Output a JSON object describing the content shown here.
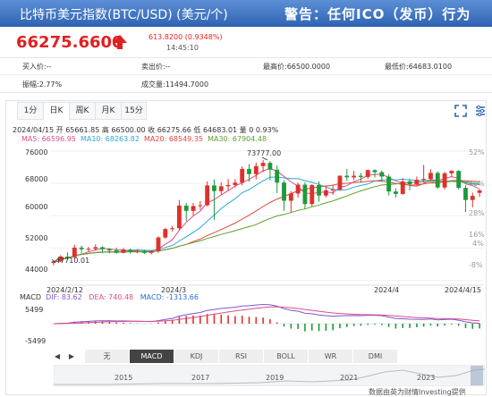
{
  "header": {
    "title": "比特币美元指数(BTC/USD) (美元/个)",
    "warning": "警告：任何ICO（发币）行为"
  },
  "quote": {
    "price": "66275.6600",
    "change": "613.8200 (0.9348%)",
    "time": "14:45:10",
    "up_color": "#e02020"
  },
  "stats": {
    "bid": "买入价:--",
    "ask": "卖出价:--",
    "high": "最高价:66500.0000",
    "low": "最低价:64683.0100",
    "amplitude": "振幅:2.77%",
    "volume": "成交量:11494.7000"
  },
  "tabs": [
    {
      "label": "1分"
    },
    {
      "label": "日K"
    },
    {
      "label": "周K"
    },
    {
      "label": "月K"
    },
    {
      "label": "15分"
    }
  ],
  "legend": {
    "ohlc": "2024/04/15  开 65661.85  高 66500.00  收 66275.66  低 64683.01  量 0  0.93%",
    "ma5": "MA5: 66596.95",
    "ma10": "MA10: 68263.82",
    "ma20": "MA20: 68549.35",
    "ma30": "MA30: 67904.48"
  },
  "macd": {
    "macd": "MACD",
    "dif": "DIF: 83.62",
    "dea": "DEA: 740.48",
    "val": "MACD: -1313.66",
    "top": "5499",
    "bottom": "-5499"
  },
  "indicators": [
    "无",
    "MACD",
    "KDJ",
    "RSI",
    "BOLL",
    "WR",
    "DMI"
  ],
  "years": [
    "2015",
    "2017",
    "2019",
    "2021",
    "2023"
  ],
  "source": "数据由英为财情Investing提供",
  "chart_data": {
    "type": "candlestick",
    "title": "",
    "ylabel": "",
    "ylim": [
      43000,
      78000
    ],
    "y_ticks_left": [
      76000,
      68000,
      60000,
      52000,
      44000
    ],
    "y_ticks_right": [
      "52%",
      "40%",
      "28%",
      "16%",
      "4%",
      "-8%"
    ],
    "x_labels": [
      "2024/2/12",
      "2024/3",
      "2024/4",
      "2024/4/15"
    ],
    "annotations": {
      "high": "73777.00",
      "low": "47710.01"
    },
    "candles": [
      [
        48300,
        48900,
        47710,
        48700
      ],
      [
        48700,
        50200,
        48500,
        49900
      ],
      [
        49900,
        50900,
        49200,
        49700
      ],
      [
        49700,
        52800,
        49300,
        52100
      ],
      [
        52100,
        52600,
        50600,
        51700
      ],
      [
        51700,
        52300,
        51000,
        51800
      ],
      [
        51800,
        52900,
        51300,
        52200
      ],
      [
        52200,
        52400,
        50700,
        51700
      ],
      [
        51700,
        52000,
        50700,
        51400
      ],
      [
        51400,
        52100,
        50600,
        50800
      ],
      [
        50800,
        52000,
        50700,
        51600
      ],
      [
        51600,
        51900,
        50600,
        51100
      ],
      [
        51100,
        51700,
        50700,
        51300
      ],
      [
        51300,
        51600,
        50500,
        50800
      ],
      [
        50800,
        51400,
        50400,
        51200
      ],
      [
        51200,
        54900,
        50800,
        54600
      ],
      [
        54600,
        57000,
        54300,
        56700
      ],
      [
        56700,
        57400,
        56100,
        56900
      ],
      [
        56900,
        63900,
        56500,
        62500
      ],
      [
        62500,
        63200,
        58700,
        61200
      ],
      [
        61200,
        63200,
        60100,
        62400
      ],
      [
        62400,
        63600,
        61500,
        62600
      ],
      [
        62600,
        68500,
        62300,
        67500
      ],
      [
        67500,
        69000,
        59000,
        66100
      ],
      [
        66100,
        68300,
        65200,
        67300
      ],
      [
        67300,
        69100,
        66200,
        67600
      ],
      [
        67600,
        69100,
        67000,
        68200
      ],
      [
        68200,
        72200,
        67500,
        71600
      ],
      [
        71600,
        72800,
        68400,
        70300
      ],
      [
        70300,
        73200,
        69000,
        72300
      ],
      [
        72300,
        73777,
        70800,
        73100
      ],
      [
        73100,
        73500,
        68800,
        71400
      ],
      [
        71400,
        72400,
        65600,
        68200
      ],
      [
        68200,
        68800,
        61200,
        63700
      ],
      [
        63700,
        66100,
        60800,
        65500
      ],
      [
        65500,
        68200,
        64500,
        67700
      ],
      [
        67700,
        68300,
        61600,
        62900
      ],
      [
        62900,
        67800,
        62300,
        67600
      ],
      [
        67600,
        68500,
        63500,
        65000
      ],
      [
        65000,
        67400,
        64500,
        66300
      ],
      [
        66300,
        67700,
        65200,
        66500
      ],
      [
        66500,
        70000,
        66200,
        69900
      ],
      [
        69900,
        71600,
        68600,
        69500
      ],
      [
        69500,
        71100,
        68800,
        69900
      ],
      [
        69900,
        70600,
        68200,
        69600
      ],
      [
        69600,
        71400,
        69100,
        71300
      ],
      [
        71300,
        71500,
        69500,
        70800
      ],
      [
        70800,
        71200,
        68400,
        69700
      ],
      [
        69700,
        70300,
        65000,
        66000
      ],
      [
        66000,
        66800,
        64500,
        65400
      ],
      [
        65400,
        69300,
        65200,
        68500
      ],
      [
        68500,
        69200,
        66300,
        67800
      ],
      [
        67800,
        69700,
        67500,
        68900
      ],
      [
        68900,
        72600,
        68200,
        69100
      ],
      [
        69100,
        71500,
        68600,
        70600
      ],
      [
        70600,
        71000,
        66700,
        67000
      ],
      [
        67000,
        70900,
        66500,
        70500
      ],
      [
        70500,
        71300,
        69600,
        71100
      ],
      [
        71100,
        71300,
        66500,
        66900
      ],
      [
        66900,
        67600,
        60900,
        63900
      ],
      [
        63900,
        65700,
        62100,
        64900
      ],
      [
        65661.85,
        66500,
        64683.01,
        66275.66
      ]
    ]
  }
}
